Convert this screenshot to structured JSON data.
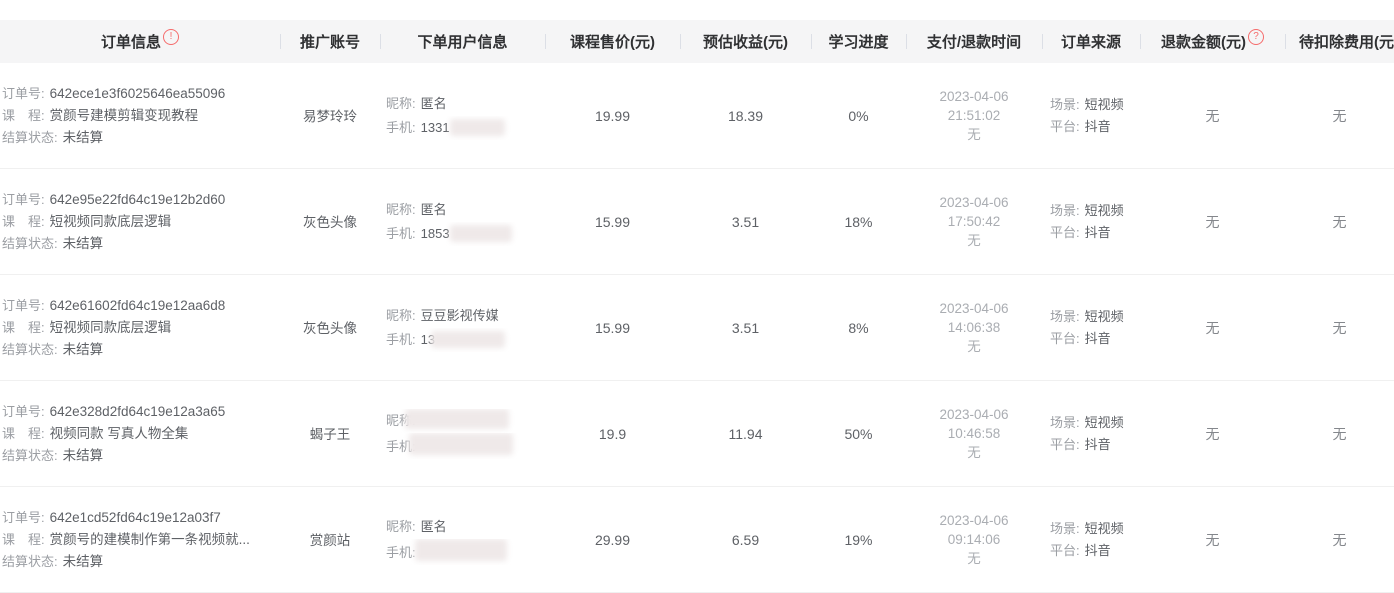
{
  "header": {
    "columns": [
      {
        "label": "订单信息"
      },
      {
        "label": "推广账号"
      },
      {
        "label": "下单用户信息"
      },
      {
        "label": "课程售价(元)"
      },
      {
        "label": "预估收益(元)"
      },
      {
        "label": "学习进度"
      },
      {
        "label": "支付/退款时间"
      },
      {
        "label": "订单来源"
      },
      {
        "label": "退款金额(元)"
      },
      {
        "label": "待扣除费用(元)"
      }
    ],
    "order_info_badge": "!",
    "refund_badge": "?"
  },
  "field_labels": {
    "order_no": "订单号:",
    "course": "课　程:",
    "settle_status": "结算状态:",
    "nickname": "昵称:",
    "phone": "手机:",
    "scene": "场景:",
    "platform": "平台:"
  },
  "rows": [
    {
      "order_no": "642ece1e3f6025646ea55096",
      "course": "赏颜号建模剪辑变现教程",
      "settle_status": "未结算",
      "promoter": "易梦玲玲",
      "nickname": "匿名",
      "phone_visible": "1331",
      "price": "19.99",
      "revenue": "18.39",
      "progress": "0%",
      "pay_date": "2023-04-06",
      "pay_time": "21:51:02",
      "refund_time": "无",
      "scene": "短视频",
      "platform": "抖音",
      "refund_amount": "无",
      "deduct_fee": "无"
    },
    {
      "order_no": "642e95e22fd64c19e12b2d60",
      "course": "短视频同款底层逻辑",
      "settle_status": "未结算",
      "promoter": "灰色头像",
      "nickname": "匿名",
      "phone_visible": "1853",
      "price": "15.99",
      "revenue": "3.51",
      "progress": "18%",
      "pay_date": "2023-04-06",
      "pay_time": "17:50:42",
      "refund_time": "无",
      "scene": "短视频",
      "platform": "抖音",
      "refund_amount": "无",
      "deduct_fee": "无"
    },
    {
      "order_no": "642e61602fd64c19e12aa6d8",
      "course": "短视频同款底层逻辑",
      "settle_status": "未结算",
      "promoter": "灰色头像",
      "nickname": "豆豆影视传媒",
      "phone_visible": "13",
      "price": "15.99",
      "revenue": "3.51",
      "progress": "8%",
      "pay_date": "2023-04-06",
      "pay_time": "14:06:38",
      "refund_time": "无",
      "scene": "短视频",
      "platform": "抖音",
      "refund_amount": "无",
      "deduct_fee": "无"
    },
    {
      "order_no": "642e328d2fd64c19e12a3a65",
      "course": "视频同款 写真人物全集",
      "settle_status": "未结算",
      "promoter": "蝎子王",
      "nickname": "",
      "phone_visible": "",
      "price": "19.9",
      "revenue": "11.94",
      "progress": "50%",
      "pay_date": "2023-04-06",
      "pay_time": "10:46:58",
      "refund_time": "无",
      "scene": "短视频",
      "platform": "抖音",
      "refund_amount": "无",
      "deduct_fee": "无"
    },
    {
      "order_no": "642e1cd52fd64c19e12a03f7",
      "course": "赏颜号的建模制作第一条视频就...",
      "settle_status": "未结算",
      "promoter": "赏颜站",
      "nickname": "匿名",
      "phone_visible": "",
      "price": "29.99",
      "revenue": "6.59",
      "progress": "19%",
      "pay_date": "2023-04-06",
      "pay_time": "09:14:06",
      "refund_time": "无",
      "scene": "短视频",
      "platform": "抖音",
      "refund_amount": "无",
      "deduct_fee": "无"
    }
  ]
}
